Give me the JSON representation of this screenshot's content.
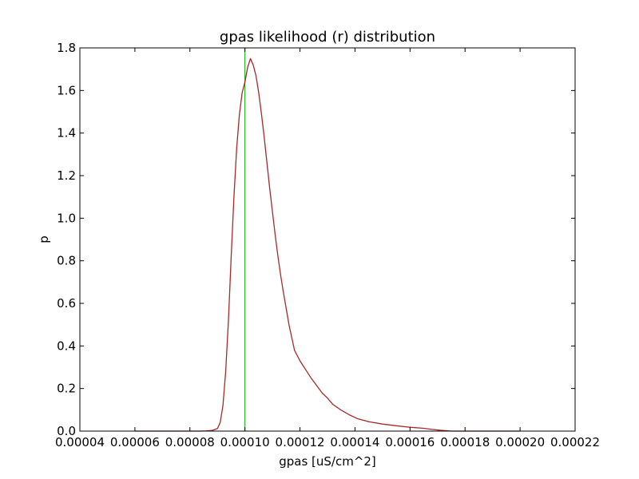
{
  "chart_data": {
    "type": "line",
    "title": "gpas likelihood (r) distribution",
    "xlabel": "gpas [uS/cm^2]",
    "ylabel": "p",
    "xlim": [
      4e-05,
      0.00022
    ],
    "ylim": [
      0.0,
      1.8
    ],
    "x_ticks": [
      4e-05,
      6e-05,
      8e-05,
      0.0001,
      0.00012,
      0.00014,
      0.00016,
      0.00018,
      0.0002,
      0.00022
    ],
    "x_tick_labels": [
      "0.00004",
      "0.00006",
      "0.00008",
      "0.00010",
      "0.00012",
      "0.00014",
      "0.00016",
      "0.00018",
      "0.00020",
      "0.00022"
    ],
    "y_ticks": [
      0.0,
      0.2,
      0.4,
      0.6,
      0.8,
      1.0,
      1.2,
      1.4,
      1.6,
      1.8
    ],
    "y_tick_labels": [
      "0.0",
      "0.2",
      "0.4",
      "0.6",
      "0.8",
      "1.0",
      "1.2",
      "1.4",
      "1.6",
      "1.8"
    ],
    "grid": false,
    "series": [
      {
        "color": "#a52a2a",
        "x": [
          6e-05,
          8e-05,
          8.4e-05,
          8.6e-05,
          8.8e-05,
          9e-05,
          9.1e-05,
          9.2e-05,
          9.3e-05,
          9.4e-05,
          9.5e-05,
          9.6e-05,
          9.7e-05,
          9.8e-05,
          9.9e-05,
          0.0001,
          0.000101,
          0.000102,
          0.000103,
          0.000104,
          0.000105,
          0.000106,
          0.000107,
          0.000108,
          0.000109,
          0.00011,
          0.000111,
          0.000112,
          0.000113,
          0.000114,
          0.000115,
          0.000116,
          0.000117,
          0.000118,
          0.00012,
          0.000122,
          0.000124,
          0.000126,
          0.000128,
          0.00013,
          0.000132,
          0.000135,
          0.000138,
          0.000141,
          0.000145,
          0.00015,
          0.000155,
          0.00016,
          0.000165,
          0.000168,
          0.000171,
          0.000175,
          0.00018,
          0.00019,
          0.0002
        ],
        "y": [
          0.0,
          0.0,
          0.0,
          0.001,
          0.003,
          0.012,
          0.04,
          0.12,
          0.28,
          0.52,
          0.82,
          1.1,
          1.33,
          1.49,
          1.59,
          1.64,
          1.71,
          1.75,
          1.72,
          1.67,
          1.59,
          1.49,
          1.38,
          1.26,
          1.14,
          1.03,
          0.92,
          0.82,
          0.73,
          0.65,
          0.575,
          0.5,
          0.44,
          0.38,
          0.33,
          0.29,
          0.25,
          0.215,
          0.18,
          0.155,
          0.125,
          0.098,
          0.076,
          0.058,
          0.044,
          0.033,
          0.025,
          0.018,
          0.013,
          0.008,
          0.004,
          0.0,
          0.0,
          0.0,
          0.0
        ]
      }
    ],
    "vlines": [
      {
        "x": 0.0001,
        "color": "#00aa00"
      }
    ]
  }
}
